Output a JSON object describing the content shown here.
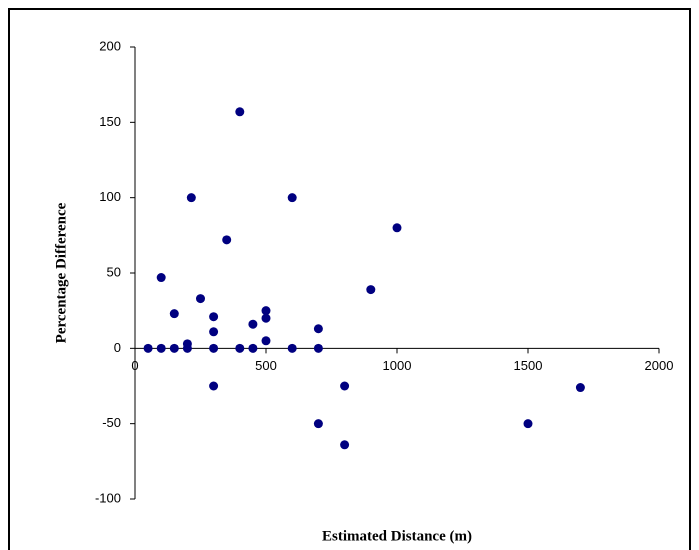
{
  "chart_data": {
    "type": "scatter",
    "x_label": "Estimated Distance  (m)",
    "y_label": "Percentage Difference",
    "series": [
      {
        "name": "Percentage Difference",
        "color": "#000080",
        "x": [
          50,
          100,
          100,
          150,
          150,
          200,
          200,
          215,
          250,
          300,
          300,
          300,
          300,
          350,
          400,
          400,
          450,
          450,
          500,
          500,
          500,
          600,
          600,
          700,
          700,
          700,
          800,
          800,
          900,
          1000,
          1500,
          1700
        ],
        "values": [
          0,
          0,
          47,
          0,
          23,
          3,
          0,
          100,
          33,
          21,
          11,
          0,
          -25,
          72,
          157,
          0,
          16,
          0,
          25,
          20,
          5,
          100,
          0,
          13,
          0,
          -50,
          -25,
          -64,
          39,
          80,
          -50,
          -26
        ]
      }
    ],
    "xlim": [
      0,
      2000
    ],
    "xticks": [
      0,
      500,
      1000,
      1500,
      2000
    ],
    "ylim": [
      -100,
      200
    ],
    "yticks": [
      -100,
      -50,
      0,
      50,
      100,
      150,
      200
    ]
  }
}
